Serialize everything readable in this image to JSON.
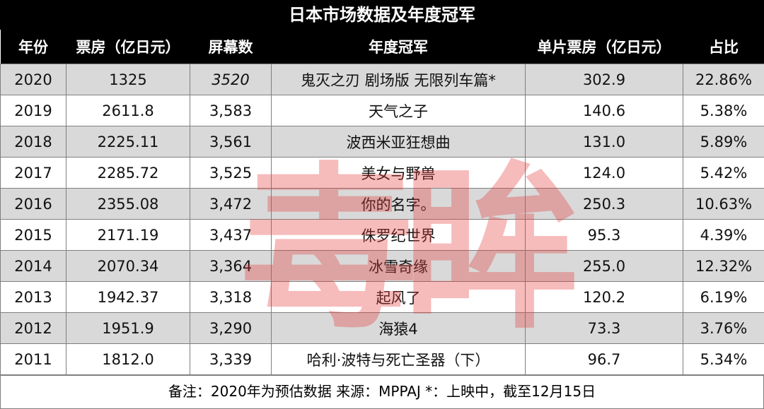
{
  "title": "日本市场数据及年度冠军",
  "table": {
    "header": [
      "年份",
      "票房（亿日元）",
      "屏幕数",
      "年度冠军",
      "单片票房（亿日元）",
      "占比"
    ],
    "rows": [
      [
        "2020",
        "1325",
        "3520",
        "鬼灭之刃 剧场版 无限列车篇*",
        "302.9",
        "22.86%"
      ],
      [
        "2019",
        "2611.8",
        "3,583",
        "天气之子",
        "140.6",
        "5.38%"
      ],
      [
        "2018",
        "2225.11",
        "3,561",
        "波西米亚狂想曲",
        "131.0",
        "5.89%"
      ],
      [
        "2017",
        "2285.72",
        "3,525",
        "美女与野兽",
        "124.0",
        "5.42%"
      ],
      [
        "2016",
        "2355.08",
        "3,472",
        "你的名字。",
        "250.3",
        "10.63%"
      ],
      [
        "2015",
        "2171.19",
        "3,437",
        "侏罗纪世界",
        "95.3",
        "4.39%"
      ],
      [
        "2014",
        "2070.34",
        "3,364",
        "冰雪奇缘",
        "255.0",
        "12.32%"
      ],
      [
        "2013",
        "1942.37",
        "3,318",
        "起风了",
        "120.2",
        "6.19%"
      ],
      [
        "2012",
        "1951.9",
        "3,290",
        "海猿4",
        "73.3",
        "3.76%"
      ],
      [
        "2011",
        "1812.0",
        "3,339",
        "哈利·波特与死亡圣器（下）",
        "96.7",
        "5.34%"
      ]
    ]
  },
  "footer": "备注：2020年为预估数据 来源：MPPAJ *：上映中，截至12月15日",
  "watermark": "毒眸"
}
